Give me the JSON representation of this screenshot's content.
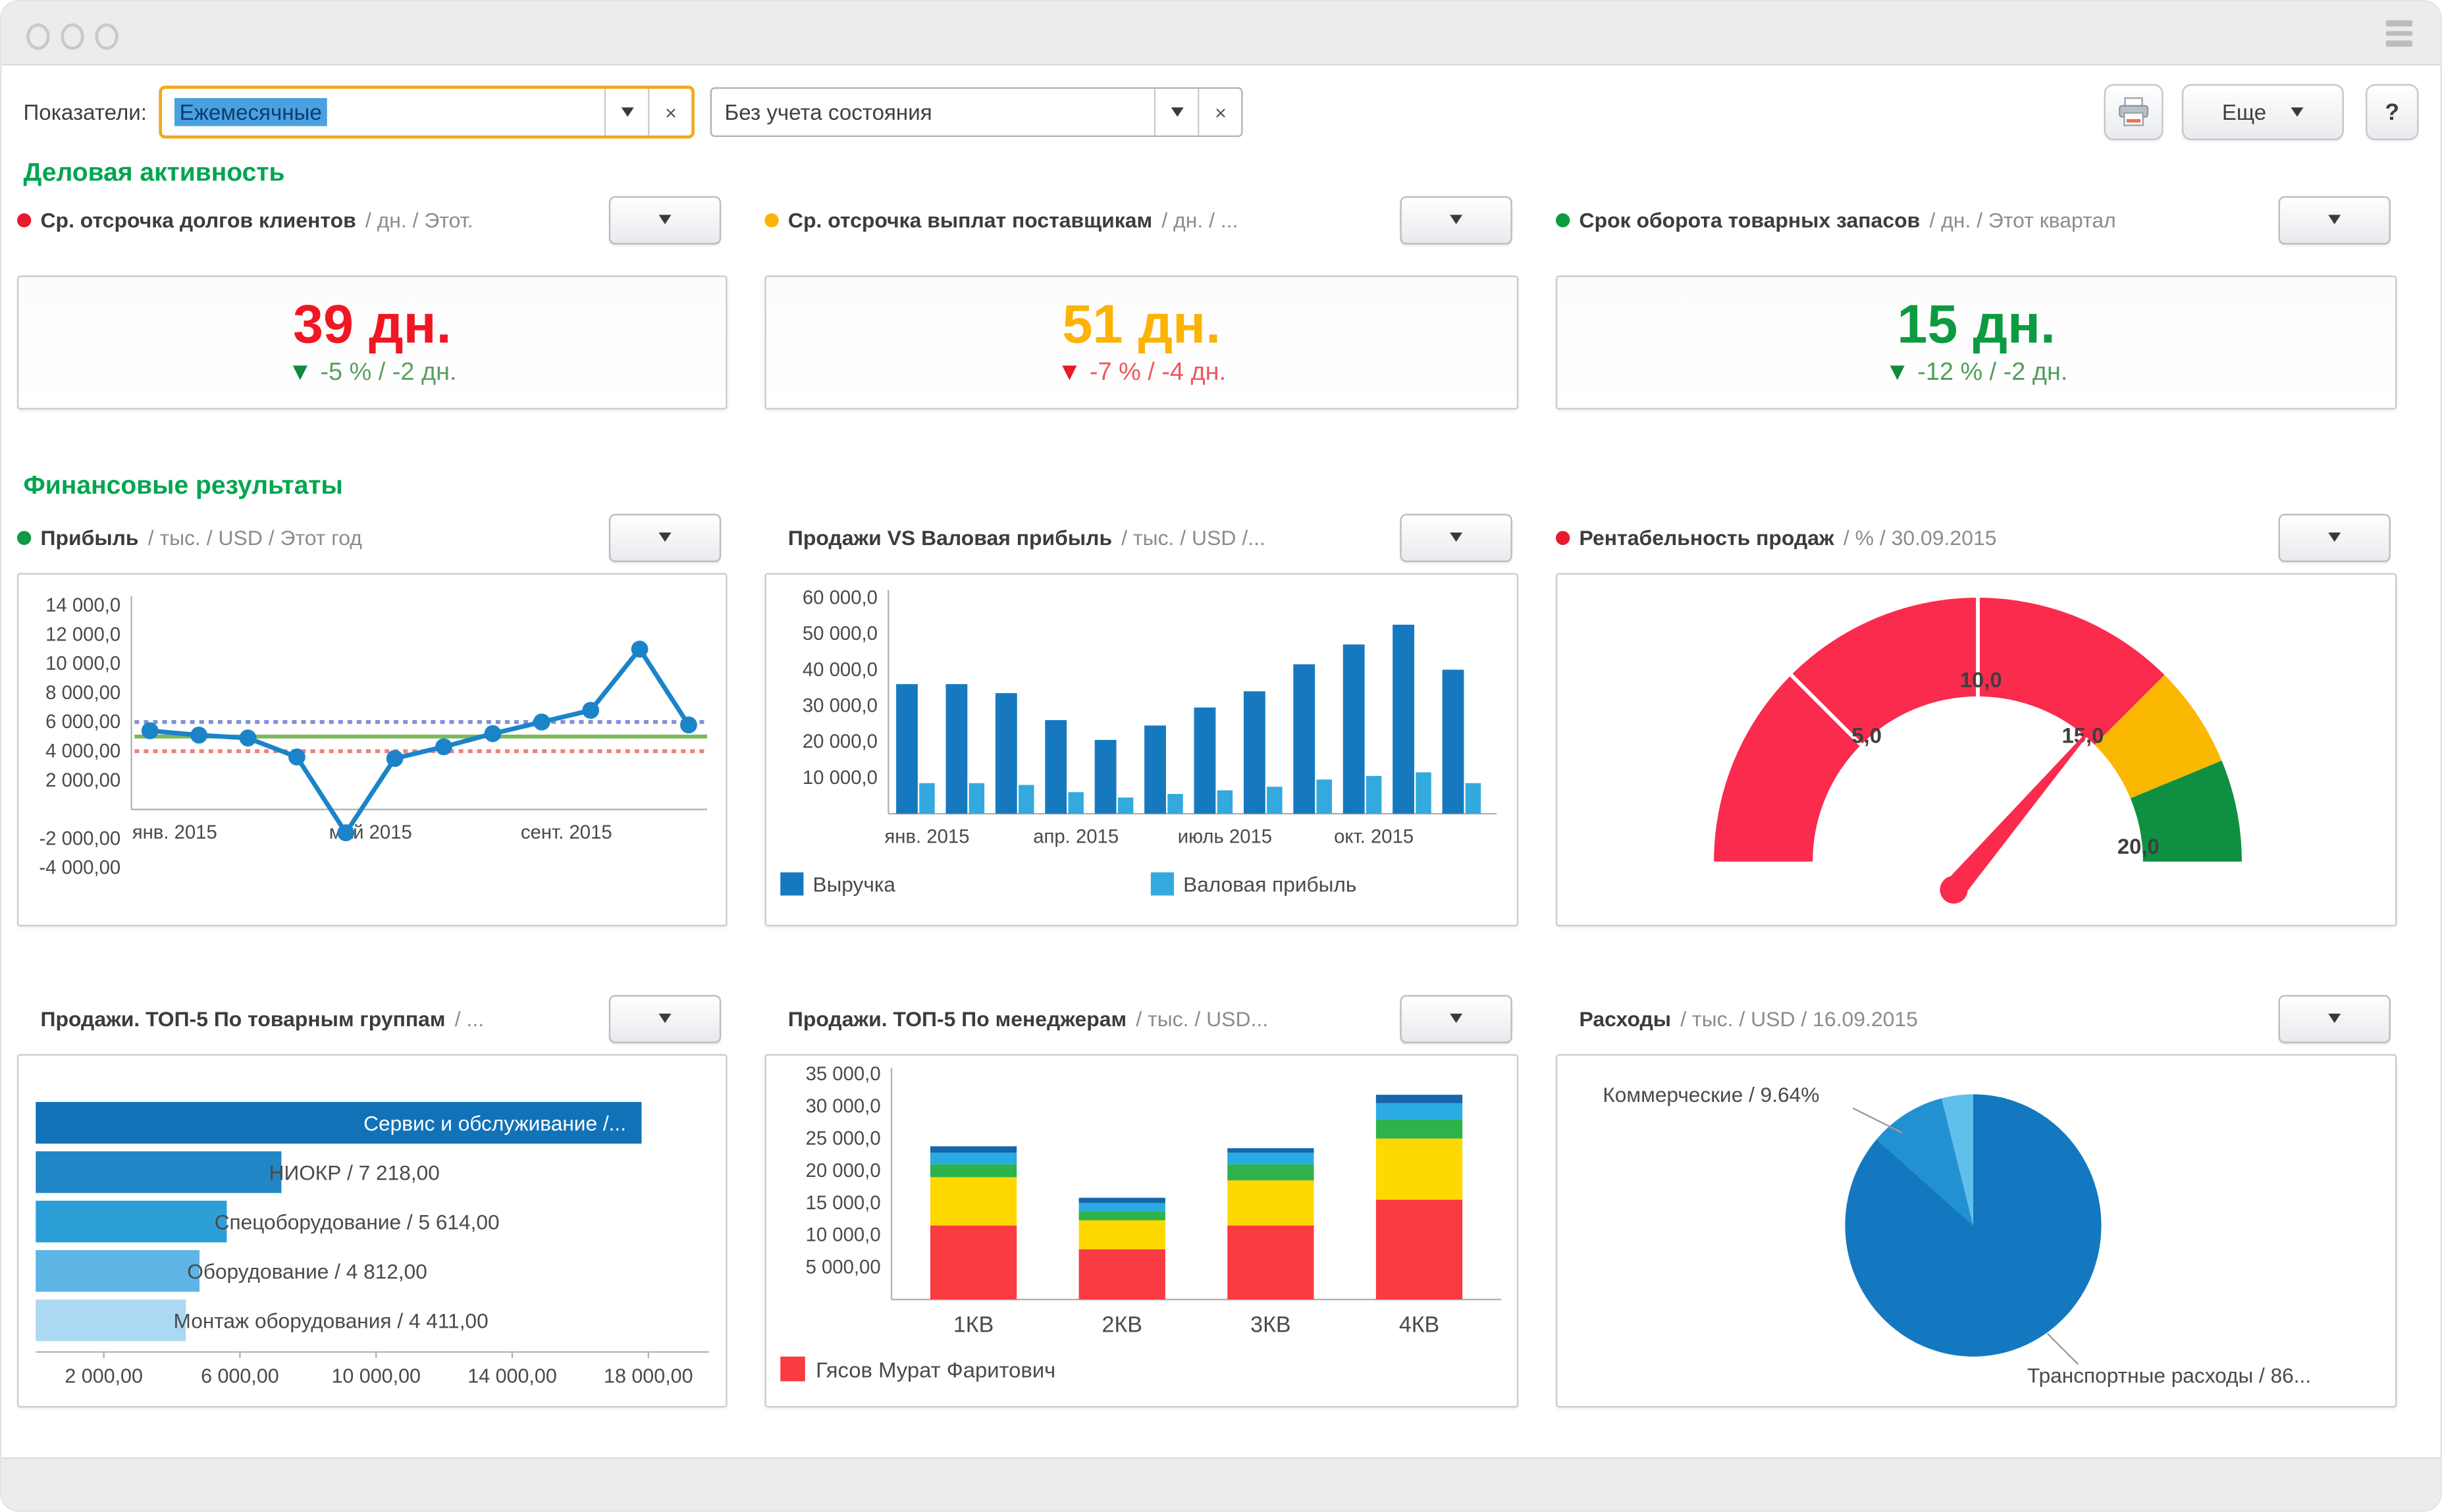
{
  "toolbar": {
    "label": "Показатели:",
    "indicator_value": "Ежемесячные",
    "state_value": "Без учета состояния",
    "clear_glyph": "×",
    "more_label": "Еще",
    "help_label": "?"
  },
  "sections": {
    "business": "Деловая активность",
    "finance": "Финансовые результаты"
  },
  "kpis": [
    {
      "dot": "#e8192c",
      "title": "Ср. отсрочка долгов клиентов",
      "suffix": "/ дн. / Этот.",
      "value": "39 дн.",
      "value_color": "#f01723",
      "arrow": "▼",
      "arrow_color": "#128a3c",
      "delta": "-5 % / -2 дн.",
      "delta_color": "#5aa05f"
    },
    {
      "dot": "#fbb305",
      "title": "Ср. отсрочка выплат поставщикам",
      "suffix": "/ дн. / ...",
      "value": "51 дн.",
      "value_color": "#fcb305",
      "arrow": "▼",
      "arrow_color": "#e8192c",
      "delta": "-7 % / -4 дн.",
      "delta_color": "#f0555e"
    },
    {
      "dot": "#0c9b40",
      "title": "Срок оборота товарных запасов",
      "suffix": "/ дн. / Этот квартал",
      "value": "15 дн.",
      "value_color": "#0c9b40",
      "arrow": "▼",
      "arrow_color": "#128a3c",
      "delta": "-12 % / -2 дн.",
      "delta_color": "#4f9e58"
    }
  ],
  "panels": [
    {
      "dot": "#0c9b40",
      "title": "Прибыль",
      "suffix": "/ тыс. / USD / Этот год"
    },
    {
      "dot": null,
      "title": "Продажи VS Валовая прибыль",
      "suffix": "/ тыс. / USD /..."
    },
    {
      "dot": "#e8192c",
      "title": "Рентабельность продаж",
      "suffix": "/ % / 30.09.2015"
    },
    {
      "dot": null,
      "title": "Продажи. ТОП-5 По товарным группам",
      "suffix": "/ ..."
    },
    {
      "dot": null,
      "title": "Продажи. ТОП-5 По менеджерам",
      "suffix": "/ тыс. / USD..."
    },
    {
      "dot": null,
      "title": "Расходы",
      "suffix": "/ тыс. / USD / 16.09.2015"
    }
  ],
  "chart_data": [
    {
      "type": "line",
      "title": "Прибыль / тыс. / USD / Этот год",
      "values": [
        5400,
        5100,
        4900,
        3600,
        -1600,
        3500,
        4300,
        5200,
        6000,
        6800,
        11000,
        5800
      ],
      "x_tick_labels": [
        {
          "index": 0,
          "label": "янв. 2015"
        },
        {
          "index": 4,
          "label": "май 2015"
        },
        {
          "index": 8,
          "label": "сент. 2015"
        }
      ],
      "ylim": [
        -4000,
        14000
      ],
      "yticks": [
        {
          "v": 14000,
          "label": "14 000,0"
        },
        {
          "v": 12000,
          "label": "12 000,0"
        },
        {
          "v": 10000,
          "label": "10 000,0"
        },
        {
          "v": 8000,
          "label": "8 000,00"
        },
        {
          "v": 6000,
          "label": "6 000,00"
        },
        {
          "v": 4000,
          "label": "4 000,00"
        },
        {
          "v": 2000,
          "label": "2 000,00"
        },
        {
          "v": -2000,
          "label": "-2 000,00"
        },
        {
          "v": -4000,
          "label": "-4 000,00"
        }
      ],
      "ref_lines": [
        {
          "v": 6000,
          "color": "#8091d6",
          "dash": "3,3"
        },
        {
          "v": 5000,
          "color": "#7cb95c",
          "dash": ""
        },
        {
          "v": 4000,
          "color": "#f28080",
          "dash": "3,3"
        }
      ],
      "line_color": "#1b84c8"
    },
    {
      "type": "bar",
      "variant": "grouped",
      "title": "Продажи VS Валовая прибыль / тыс. / USD /...",
      "series": [
        {
          "name": "Выручка",
          "color": "#1679bf",
          "values": [
            36000,
            36000,
            33500,
            26000,
            20500,
            24500,
            29500,
            34000,
            41500,
            47000,
            52500,
            40000
          ]
        },
        {
          "name": "Валовая прибыль",
          "color": "#33a9de",
          "values": [
            8500,
            8500,
            8000,
            6000,
            4500,
            5500,
            6500,
            7500,
            9500,
            10500,
            11500,
            8500
          ]
        }
      ],
      "x_tick_labels": [
        {
          "index": 0,
          "label": "янв. 2015"
        },
        {
          "index": 3,
          "label": "апр. 2015"
        },
        {
          "index": 6,
          "label": "июль 2015"
        },
        {
          "index": 9,
          "label": "окт. 2015"
        }
      ],
      "ylim": [
        0,
        60000
      ],
      "yticks": [
        {
          "v": 60000,
          "label": "60 000,0"
        },
        {
          "v": 50000,
          "label": "50 000,0"
        },
        {
          "v": 40000,
          "label": "40 000,0"
        },
        {
          "v": 30000,
          "label": "30 000,0"
        },
        {
          "v": 20000,
          "label": "20 000,0"
        },
        {
          "v": 10000,
          "label": "10 000,0"
        }
      ]
    },
    {
      "type": "gauge",
      "title": "Рентабельность продаж / % / 30.09.2015",
      "min": 0,
      "max": 20,
      "value": 14.5,
      "bands": [
        {
          "from": 0,
          "to": 15,
          "color": "#fa2b4d"
        },
        {
          "from": 15,
          "to": 17.5,
          "color": "#fbb800"
        },
        {
          "from": 17.5,
          "to": 20,
          "color": "#0e9040"
        }
      ],
      "tick_labels": [
        {
          "v": 5,
          "label": "5,0"
        },
        {
          "v": 10,
          "label": "10,0"
        },
        {
          "v": 15,
          "label": "15,0"
        },
        {
          "v": 20,
          "label": "20,0"
        }
      ]
    },
    {
      "type": "bar",
      "variant": "horizontal",
      "title": "Продажи. ТОП-5 По товарным группам / ...",
      "items": [
        {
          "label": "Сервис и обслуживание /...",
          "value": 17800,
          "color": "#1172b8",
          "label_inside": true
        },
        {
          "label": "НИОКР / 7 218,00",
          "value": 7218,
          "color": "#2086c6",
          "label_inside": false
        },
        {
          "label": "Спецоборудование / 5 614,00",
          "value": 5614,
          "color": "#2d9fd8",
          "label_inside": false
        },
        {
          "label": "Оборудование / 4 812,00",
          "value": 4812,
          "color": "#5cb5e5",
          "label_inside": false
        },
        {
          "label": "Монтаж оборудования / 4 411,00",
          "value": 4411,
          "color": "#abd9f2",
          "label_inside": false
        }
      ],
      "xlim": [
        0,
        19500
      ],
      "xticks": [
        {
          "v": 2000,
          "label": "2 000,00"
        },
        {
          "v": 6000,
          "label": "6 000,00"
        },
        {
          "v": 10000,
          "label": "10 000,00"
        },
        {
          "v": 14000,
          "label": "14 000,00"
        },
        {
          "v": 18000,
          "label": "18 000,00"
        }
      ]
    },
    {
      "type": "bar",
      "variant": "stacked",
      "title": "Продажи. ТОП-5 По менеджерам / тыс. / USD...",
      "categories": [
        "1КВ",
        "2КВ",
        "3КВ",
        "4КВ"
      ],
      "series": [
        {
          "name": "Гясов Мурат Фаритович",
          "color": "#f93b42",
          "values": [
            11500,
            7800,
            11500,
            15500
          ]
        },
        {
          "name": "",
          "color": "#ffd800",
          "values": [
            7500,
            4500,
            7000,
            9500
          ]
        },
        {
          "name": "",
          "color": "#2db34a",
          "values": [
            2000,
            1400,
            2500,
            3000
          ]
        },
        {
          "name": "",
          "color": "#2aabe2",
          "values": [
            1800,
            1300,
            1800,
            2500
          ]
        },
        {
          "name": "",
          "color": "#1566ad",
          "values": [
            1000,
            800,
            700,
            1300
          ]
        }
      ],
      "ylim": [
        0,
        35000
      ],
      "yticks": [
        {
          "v": 35000,
          "label": "35 000,0"
        },
        {
          "v": 30000,
          "label": "30 000,0"
        },
        {
          "v": 25000,
          "label": "25 000,0"
        },
        {
          "v": 20000,
          "label": "20 000,0"
        },
        {
          "v": 15000,
          "label": "15 000,0"
        },
        {
          "v": 10000,
          "label": "10 000,0"
        },
        {
          "v": 5000,
          "label": "5 000,00"
        }
      ],
      "legend": [
        {
          "label": "Гясов Мурат Фаритович",
          "color": "#f93b42"
        }
      ]
    },
    {
      "type": "pie",
      "title": "Расходы / тыс. / USD / 16.09.2015",
      "slices": [
        {
          "label": "Транспортные расходы / 86...",
          "pct": 86.4,
          "color": "#1478c0"
        },
        {
          "label": "Коммерческие / 9.64%",
          "pct": 9.64,
          "color": "#2291d1"
        },
        {
          "label": "",
          "pct": 3.96,
          "color": "#5fc0ec"
        }
      ]
    }
  ]
}
